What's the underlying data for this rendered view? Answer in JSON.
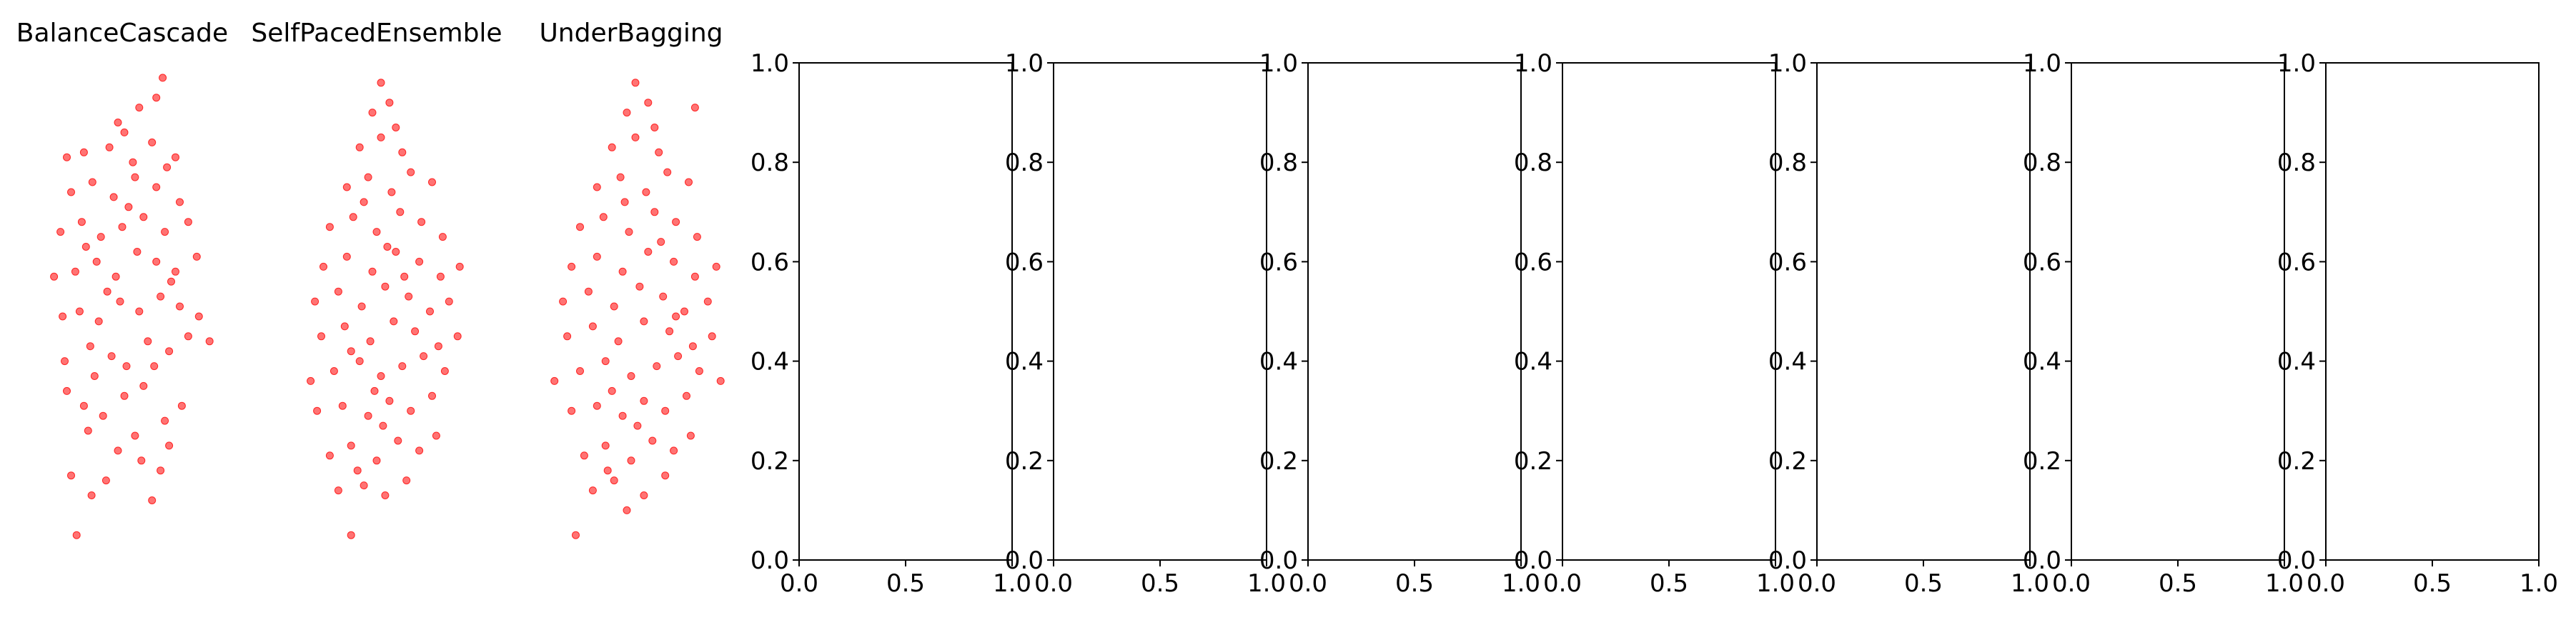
{
  "chart_data": [
    {
      "type": "scatter",
      "title": "BalanceCascade",
      "axis_visible": false,
      "color": "#ff0000",
      "points": [
        [
          1.43,
          0.05
        ],
        [
          1.78,
          0.13
        ],
        [
          2.12,
          0.16
        ],
        [
          1.3,
          0.17
        ],
        [
          2.4,
          0.22
        ],
        [
          2.8,
          0.25
        ],
        [
          3.2,
          0.12
        ],
        [
          3.4,
          0.18
        ],
        [
          1.2,
          0.34
        ],
        [
          1.6,
          0.31
        ],
        [
          2.05,
          0.29
        ],
        [
          2.55,
          0.33
        ],
        [
          3.0,
          0.35
        ],
        [
          3.5,
          0.28
        ],
        [
          3.9,
          0.31
        ],
        [
          1.15,
          0.4
        ],
        [
          1.75,
          0.43
        ],
        [
          2.25,
          0.41
        ],
        [
          2.6,
          0.39
        ],
        [
          3.1,
          0.44
        ],
        [
          3.6,
          0.42
        ],
        [
          4.05,
          0.45
        ],
        [
          4.55,
          0.44
        ],
        [
          1.1,
          0.49
        ],
        [
          1.5,
          0.5
        ],
        [
          1.95,
          0.48
        ],
        [
          2.45,
          0.52
        ],
        [
          2.9,
          0.5
        ],
        [
          3.4,
          0.53
        ],
        [
          3.85,
          0.51
        ],
        [
          4.3,
          0.49
        ],
        [
          0.9,
          0.57
        ],
        [
          1.4,
          0.58
        ],
        [
          1.9,
          0.6
        ],
        [
          2.35,
          0.57
        ],
        [
          2.85,
          0.62
        ],
        [
          3.3,
          0.6
        ],
        [
          3.75,
          0.58
        ],
        [
          4.25,
          0.61
        ],
        [
          1.05,
          0.66
        ],
        [
          1.55,
          0.68
        ],
        [
          2.0,
          0.65
        ],
        [
          2.5,
          0.67
        ],
        [
          3.0,
          0.69
        ],
        [
          3.5,
          0.66
        ],
        [
          4.05,
          0.68
        ],
        [
          1.3,
          0.74
        ],
        [
          1.8,
          0.76
        ],
        [
          2.3,
          0.73
        ],
        [
          2.8,
          0.77
        ],
        [
          3.3,
          0.75
        ],
        [
          3.85,
          0.72
        ],
        [
          1.2,
          0.81
        ],
        [
          1.6,
          0.82
        ],
        [
          2.2,
          0.83
        ],
        [
          2.75,
          0.8
        ],
        [
          3.2,
          0.84
        ],
        [
          3.75,
          0.81
        ],
        [
          2.4,
          0.88
        ],
        [
          2.9,
          0.91
        ],
        [
          3.3,
          0.93
        ],
        [
          3.45,
          0.97
        ],
        [
          1.7,
          0.26
        ],
        [
          2.95,
          0.2
        ],
        [
          3.6,
          0.23
        ],
        [
          1.85,
          0.37
        ],
        [
          3.25,
          0.39
        ],
        [
          2.15,
          0.54
        ],
        [
          3.65,
          0.56
        ],
        [
          1.65,
          0.63
        ],
        [
          2.65,
          0.71
        ],
        [
          3.55,
          0.79
        ],
        [
          2.55,
          0.86
        ]
      ]
    },
    {
      "type": "scatter",
      "title": "SelfPacedEnsemble",
      "axis_visible": false,
      "color": "#ff0000",
      "points": [
        [
          1.9,
          0.05
        ],
        [
          1.6,
          0.14
        ],
        [
          2.2,
          0.15
        ],
        [
          2.7,
          0.13
        ],
        [
          3.2,
          0.16
        ],
        [
          1.4,
          0.21
        ],
        [
          1.9,
          0.23
        ],
        [
          2.5,
          0.2
        ],
        [
          3.0,
          0.24
        ],
        [
          3.5,
          0.22
        ],
        [
          3.9,
          0.25
        ],
        [
          1.1,
          0.3
        ],
        [
          1.7,
          0.31
        ],
        [
          2.3,
          0.29
        ],
        [
          2.8,
          0.32
        ],
        [
          3.3,
          0.3
        ],
        [
          3.8,
          0.33
        ],
        [
          0.95,
          0.36
        ],
        [
          1.5,
          0.38
        ],
        [
          2.1,
          0.4
        ],
        [
          2.6,
          0.37
        ],
        [
          3.1,
          0.39
        ],
        [
          3.6,
          0.41
        ],
        [
          4.1,
          0.38
        ],
        [
          1.2,
          0.45
        ],
        [
          1.75,
          0.47
        ],
        [
          2.35,
          0.44
        ],
        [
          2.9,
          0.48
        ],
        [
          3.4,
          0.46
        ],
        [
          3.95,
          0.43
        ],
        [
          4.4,
          0.45
        ],
        [
          1.05,
          0.52
        ],
        [
          1.6,
          0.54
        ],
        [
          2.15,
          0.51
        ],
        [
          2.7,
          0.55
        ],
        [
          3.25,
          0.53
        ],
        [
          3.75,
          0.5
        ],
        [
          4.2,
          0.52
        ],
        [
          1.25,
          0.59
        ],
        [
          1.8,
          0.61
        ],
        [
          2.4,
          0.58
        ],
        [
          2.95,
          0.62
        ],
        [
          3.5,
          0.6
        ],
        [
          4.0,
          0.57
        ],
        [
          4.45,
          0.59
        ],
        [
          1.4,
          0.67
        ],
        [
          1.95,
          0.69
        ],
        [
          2.5,
          0.66
        ],
        [
          3.05,
          0.7
        ],
        [
          3.55,
          0.68
        ],
        [
          4.05,
          0.65
        ],
        [
          1.8,
          0.75
        ],
        [
          2.3,
          0.77
        ],
        [
          2.85,
          0.74
        ],
        [
          3.3,
          0.78
        ],
        [
          3.8,
          0.76
        ],
        [
          2.1,
          0.83
        ],
        [
          2.6,
          0.85
        ],
        [
          3.1,
          0.82
        ],
        [
          2.4,
          0.9
        ],
        [
          2.8,
          0.92
        ],
        [
          2.6,
          0.96
        ],
        [
          2.05,
          0.18
        ],
        [
          2.65,
          0.27
        ],
        [
          2.45,
          0.34
        ],
        [
          1.9,
          0.42
        ],
        [
          3.15,
          0.57
        ],
        [
          2.75,
          0.63
        ],
        [
          2.2,
          0.72
        ],
        [
          2.95,
          0.87
        ]
      ]
    },
    {
      "type": "scatter",
      "title": "UnderBagging",
      "axis_visible": false,
      "color": "#ff0000",
      "points": [
        [
          1.2,
          0.05
        ],
        [
          2.4,
          0.1
        ],
        [
          1.6,
          0.14
        ],
        [
          2.1,
          0.16
        ],
        [
          2.8,
          0.13
        ],
        [
          3.3,
          0.17
        ],
        [
          1.4,
          0.21
        ],
        [
          1.9,
          0.23
        ],
        [
          2.5,
          0.2
        ],
        [
          3.0,
          0.24
        ],
        [
          3.5,
          0.22
        ],
        [
          3.9,
          0.25
        ],
        [
          1.1,
          0.3
        ],
        [
          1.7,
          0.31
        ],
        [
          2.3,
          0.29
        ],
        [
          2.8,
          0.32
        ],
        [
          3.3,
          0.3
        ],
        [
          3.8,
          0.33
        ],
        [
          0.7,
          0.36
        ],
        [
          1.3,
          0.38
        ],
        [
          1.9,
          0.4
        ],
        [
          2.5,
          0.37
        ],
        [
          3.1,
          0.39
        ],
        [
          3.6,
          0.41
        ],
        [
          4.1,
          0.38
        ],
        [
          4.6,
          0.36
        ],
        [
          1.0,
          0.45
        ],
        [
          1.6,
          0.47
        ],
        [
          2.2,
          0.44
        ],
        [
          2.8,
          0.48
        ],
        [
          3.4,
          0.46
        ],
        [
          3.95,
          0.43
        ],
        [
          4.4,
          0.45
        ],
        [
          0.9,
          0.52
        ],
        [
          1.5,
          0.54
        ],
        [
          2.1,
          0.51
        ],
        [
          2.7,
          0.55
        ],
        [
          3.25,
          0.53
        ],
        [
          3.75,
          0.5
        ],
        [
          4.3,
          0.52
        ],
        [
          1.1,
          0.59
        ],
        [
          1.7,
          0.61
        ],
        [
          2.3,
          0.58
        ],
        [
          2.9,
          0.62
        ],
        [
          3.5,
          0.6
        ],
        [
          4.0,
          0.57
        ],
        [
          4.5,
          0.59
        ],
        [
          1.3,
          0.67
        ],
        [
          1.85,
          0.69
        ],
        [
          2.45,
          0.66
        ],
        [
          3.05,
          0.7
        ],
        [
          3.55,
          0.68
        ],
        [
          4.05,
          0.65
        ],
        [
          1.7,
          0.75
        ],
        [
          2.25,
          0.77
        ],
        [
          2.85,
          0.74
        ],
        [
          3.35,
          0.78
        ],
        [
          3.85,
          0.76
        ],
        [
          2.05,
          0.83
        ],
        [
          2.6,
          0.85
        ],
        [
          3.15,
          0.82
        ],
        [
          2.4,
          0.9
        ],
        [
          2.9,
          0.92
        ],
        [
          4.0,
          0.91
        ],
        [
          2.6,
          0.96
        ],
        [
          1.95,
          0.18
        ],
        [
          2.65,
          0.27
        ],
        [
          2.05,
          0.34
        ],
        [
          3.55,
          0.49
        ],
        [
          3.2,
          0.64
        ],
        [
          2.35,
          0.72
        ],
        [
          3.05,
          0.87
        ]
      ]
    },
    {
      "type": "scatter",
      "axis_visible": true,
      "xlim": [
        0.0,
        1.0
      ],
      "ylim": [
        0.0,
        1.0
      ],
      "xticks": [
        "0.0",
        "0.5",
        "1.0"
      ],
      "yticks": [
        "0.0",
        "0.2",
        "0.4",
        "0.6",
        "0.8",
        "1.0"
      ],
      "points": []
    },
    {
      "type": "scatter",
      "axis_visible": true,
      "xlim": [
        0.0,
        1.0
      ],
      "ylim": [
        0.0,
        1.0
      ],
      "xticks": [
        "0.0",
        "0.5",
        "1.0"
      ],
      "yticks": [
        "0.0",
        "0.2",
        "0.4",
        "0.6",
        "0.8",
        "1.0"
      ],
      "points": []
    },
    {
      "type": "scatter",
      "axis_visible": true,
      "xlim": [
        0.0,
        1.0
      ],
      "ylim": [
        0.0,
        1.0
      ],
      "xticks": [
        "0.0",
        "0.5",
        "1.0"
      ],
      "yticks": [
        "0.0",
        "0.2",
        "0.4",
        "0.6",
        "0.8",
        "1.0"
      ],
      "points": []
    },
    {
      "type": "scatter",
      "axis_visible": true,
      "xlim": [
        0.0,
        1.0
      ],
      "ylim": [
        0.0,
        1.0
      ],
      "xticks": [
        "0.0",
        "0.5",
        "1.0"
      ],
      "yticks": [
        "0.0",
        "0.2",
        "0.4",
        "0.6",
        "0.8",
        "1.0"
      ],
      "points": []
    },
    {
      "type": "scatter",
      "axis_visible": true,
      "xlim": [
        0.0,
        1.0
      ],
      "ylim": [
        0.0,
        1.0
      ],
      "xticks": [
        "0.0",
        "0.5",
        "1.0"
      ],
      "yticks": [
        "0.0",
        "0.2",
        "0.4",
        "0.6",
        "0.8",
        "1.0"
      ],
      "points": []
    },
    {
      "type": "scatter",
      "axis_visible": true,
      "xlim": [
        0.0,
        1.0
      ],
      "ylim": [
        0.0,
        1.0
      ],
      "xticks": [
        "0.0",
        "0.5",
        "1.0"
      ],
      "yticks": [
        "0.0",
        "0.2",
        "0.4",
        "0.6",
        "0.8",
        "1.0"
      ],
      "points": []
    },
    {
      "type": "scatter",
      "axis_visible": true,
      "xlim": [
        0.0,
        1.0
      ],
      "ylim": [
        0.0,
        1.0
      ],
      "xticks": [
        "0.0",
        "0.5",
        "1.0"
      ],
      "yticks": [
        "0.0",
        "0.2",
        "0.4",
        "0.6",
        "0.8",
        "1.0"
      ],
      "points": []
    }
  ]
}
